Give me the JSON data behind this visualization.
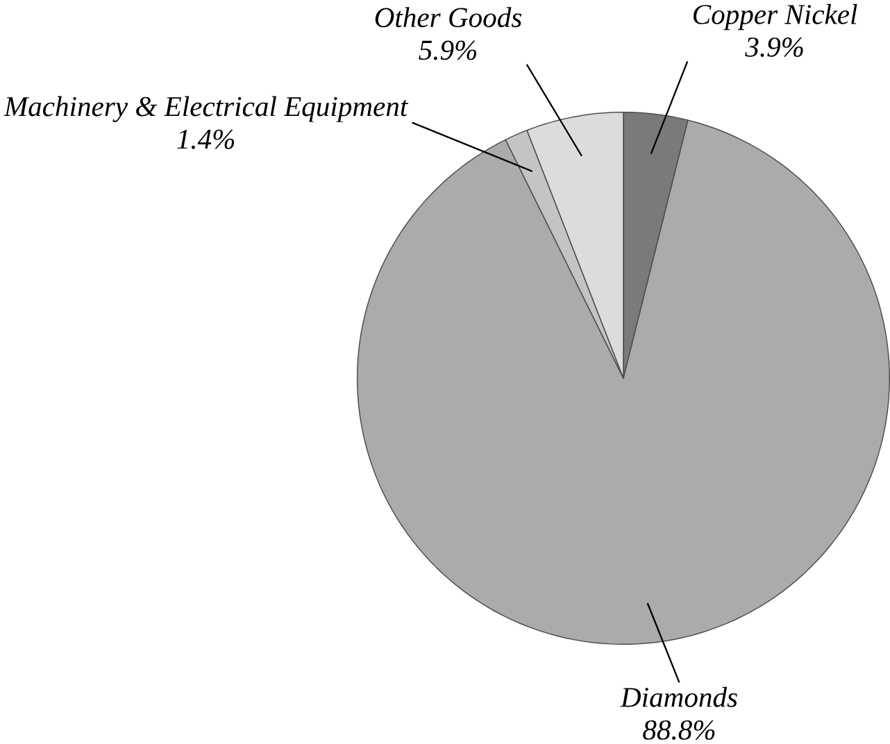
{
  "chart_data": {
    "type": "pie",
    "categories": [
      "Copper Nickel",
      "Diamonds",
      "Machinery & Electrical Equipment",
      "Other Goods"
    ],
    "values": [
      3.9,
      88.8,
      1.4,
      5.9
    ],
    "value_labels": [
      "3.9%",
      "88.8%",
      "1.4%",
      "5.9%"
    ],
    "colors": [
      "#7a7a7a",
      "#ababab",
      "#c4c4c4",
      "#dcdcdc"
    ]
  }
}
